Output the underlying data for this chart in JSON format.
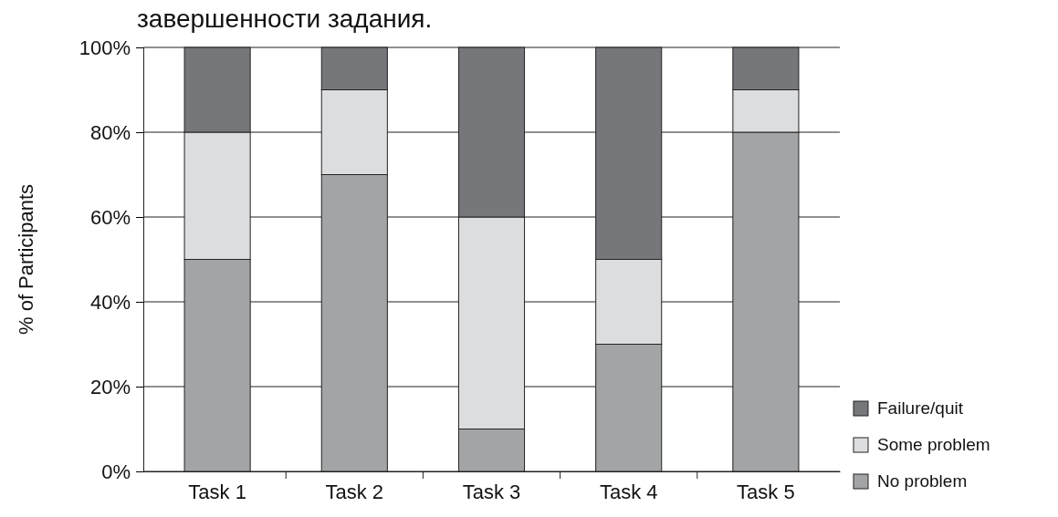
{
  "chart_data": {
    "type": "bar",
    "title": "завершенности задания.",
    "ylabel": "% of Participants",
    "categories": [
      "Task 1",
      "Task 2",
      "Task 3",
      "Task 4",
      "Task 5"
    ],
    "stacked": true,
    "series": [
      {
        "name": "No problem",
        "color": "#a3a4a6",
        "values": [
          50,
          70,
          10,
          30,
          80
        ]
      },
      {
        "name": "Some problem",
        "color": "#dcdddf",
        "values": [
          30,
          20,
          50,
          20,
          10
        ]
      },
      {
        "name": "Failure/quit",
        "color": "#76777b",
        "values": [
          20,
          10,
          40,
          50,
          10
        ]
      }
    ],
    "ylim": [
      0,
      100
    ],
    "yticks": [
      {
        "value": 0,
        "label": "0%"
      },
      {
        "value": 20,
        "label": "20%"
      },
      {
        "value": 40,
        "label": "40%"
      },
      {
        "value": 60,
        "label": "60%"
      },
      {
        "value": 80,
        "label": "80%"
      },
      {
        "value": 100,
        "label": "100%"
      }
    ],
    "grid": "y",
    "legend": "bottom right"
  }
}
